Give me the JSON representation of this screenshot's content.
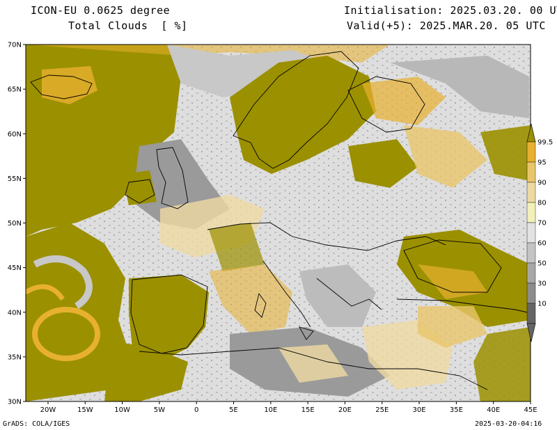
{
  "header": {
    "model": "ICON-EU 0.0625 degree",
    "variable": "Total Clouds  [ %]",
    "init": "Initialisation: 2025.03.20. 00 UTC",
    "valid": "Valid(+5): 2025.MAR.20. 05 UTC"
  },
  "footer": {
    "credit": "GrADS: COLA/IGES",
    "timestamp": "2025-03-20-04:16"
  },
  "map": {
    "lat_ticks": [
      "70N",
      "65N",
      "60N",
      "55N",
      "50N",
      "45N",
      "40N",
      "35N",
      "30N"
    ],
    "lon_ticks": [
      "20W",
      "15W",
      "10W",
      "5W",
      "0",
      "5E",
      "10E",
      "15E",
      "20E",
      "25E",
      "30E",
      "35E",
      "40E",
      "45E"
    ],
    "lat_range": [
      30,
      70
    ],
    "lon_range": [
      -23,
      45
    ]
  },
  "colorbar": {
    "labels": [
      "99.5",
      "95",
      "90",
      "80",
      "70",
      "60",
      "50",
      "30",
      "10"
    ],
    "colors": [
      "#9b9000",
      "#e8b030",
      "#e9c66c",
      "#efd9a3",
      "#f2efb8",
      "#e2e2e2",
      "#c4c4c4",
      "#a7a7a7",
      "#8c8c8c",
      "#656565"
    ]
  },
  "palette": {
    "overcast": "#9b9000",
    "clear": "#e3e3e3",
    "orange": "#e8b030",
    "tan": "#efd9a3",
    "boundary": "#000000"
  }
}
